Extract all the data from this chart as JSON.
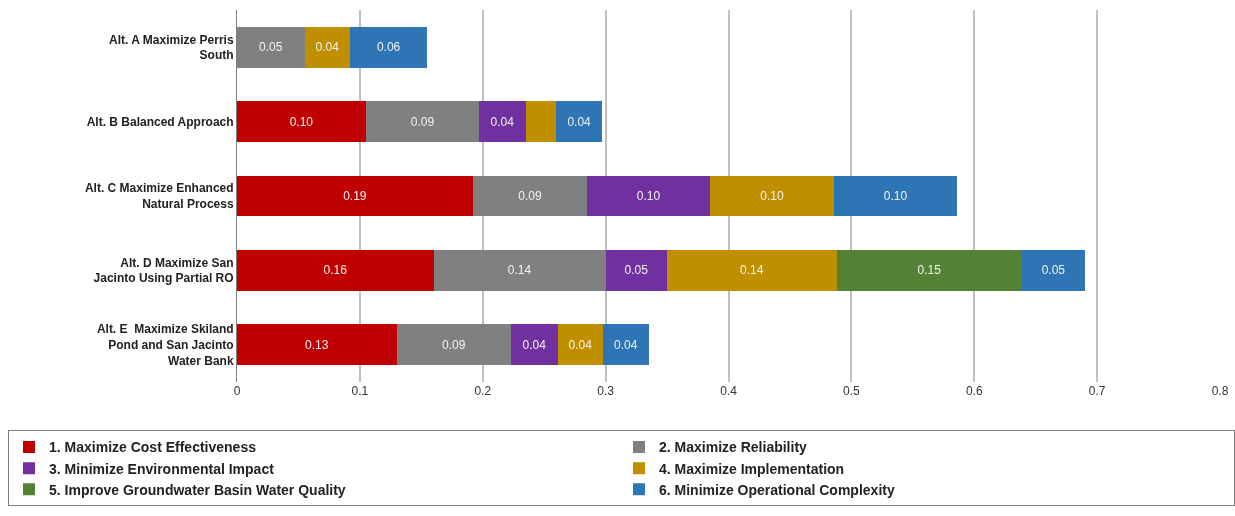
{
  "chart_data": {
    "type": "bar",
    "orientation": "horizontal",
    "stacked": true,
    "categories": [
      "Alt. A Maximize Perris South",
      "Alt. B Balanced Approach",
      "Alt. C Maximize Enhanced Natural Process",
      "Alt. D Maximize San Jacinto Using Partial RO",
      "Alt. E  Maximize Skiland Pond and San Jacinto Water Bank"
    ],
    "series": [
      {
        "name": "1. Maximize Cost Effectiveness",
        "color": "#c00000",
        "values": [
          null,
          0.105,
          0.192,
          0.16,
          0.13
        ],
        "value_labels": [
          null,
          "0.10",
          "0.19",
          "0.16",
          "0.13"
        ]
      },
      {
        "name": "2. Maximize Reliability",
        "color": "#808080",
        "values": [
          0.055,
          0.092,
          0.093,
          0.14,
          0.093
        ],
        "value_labels": [
          "0.05",
          "0.09",
          "0.09",
          "0.14",
          "0.09"
        ]
      },
      {
        "name": "3. Minimize Environmental Impact",
        "color": "#7030a0",
        "values": [
          null,
          0.038,
          0.1,
          0.05,
          0.038
        ],
        "value_labels": [
          null,
          "0.04",
          "0.10",
          "0.05",
          "0.04"
        ]
      },
      {
        "name": "4. Maximize Implementation",
        "color": "#bf8f00",
        "values": [
          0.037,
          0.025,
          0.101,
          0.138,
          0.037
        ],
        "value_labels": [
          "0.04",
          null,
          "0.10",
          "0.14",
          "0.04"
        ]
      },
      {
        "name": "5. Improve Groundwater Basin Water Quality",
        "color": "#548235",
        "values": [
          null,
          null,
          null,
          0.151,
          null
        ],
        "value_labels": [
          null,
          null,
          null,
          "0.15",
          null
        ]
      },
      {
        "name": "6. Minimize Operational Complexity",
        "color": "#2e75b6",
        "values": [
          0.063,
          0.037,
          0.1,
          0.051,
          0.037
        ],
        "value_labels": [
          "0.06",
          "0.04",
          "0.10",
          "0.05",
          "0.04"
        ]
      }
    ],
    "xlim": [
      0,
      0.8
    ],
    "xticks": [
      0,
      0.1,
      0.2,
      0.3,
      0.4,
      0.5,
      0.6,
      0.7,
      0.8
    ],
    "grid": "x",
    "legend": "bottom"
  }
}
